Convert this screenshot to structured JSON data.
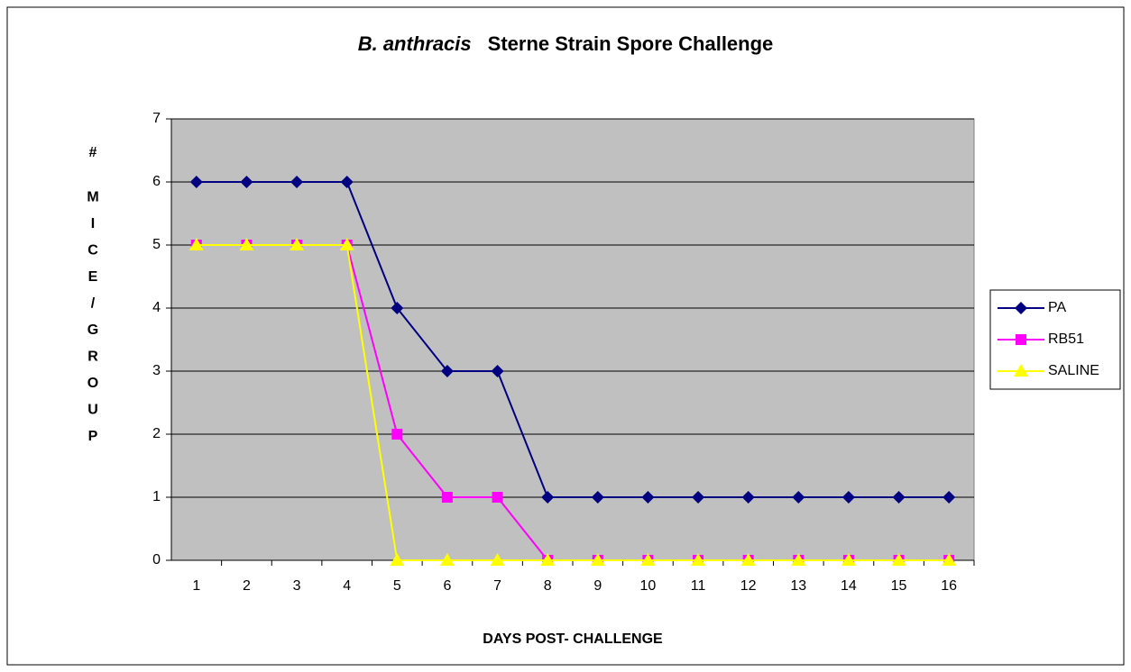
{
  "chart_data": {
    "type": "line",
    "title": [
      "B. anthracis",
      "Sterne Strain Spore Challenge"
    ],
    "xlabel": "DAYS POST- CHALLENGE",
    "ylabel": "# MICE/GROUP",
    "categories": [
      1,
      2,
      3,
      4,
      5,
      6,
      7,
      8,
      9,
      10,
      11,
      12,
      13,
      14,
      15,
      16
    ],
    "series": [
      {
        "name": "PA",
        "color": "#000080",
        "marker": "diamond",
        "values": [
          6,
          6,
          6,
          6,
          4,
          3,
          3,
          1,
          1,
          1,
          1,
          1,
          1,
          1,
          1,
          1
        ]
      },
      {
        "name": "RB51",
        "color": "#ff00ff",
        "marker": "square",
        "values": [
          5,
          5,
          5,
          5,
          2,
          1,
          1,
          0,
          0,
          0,
          0,
          0,
          0,
          0,
          0,
          0
        ]
      },
      {
        "name": "SALINE",
        "color": "#ffff00",
        "marker": "triangle",
        "values": [
          5,
          5,
          5,
          5,
          0,
          0,
          0,
          0,
          0,
          0,
          0,
          0,
          0,
          0,
          0,
          0
        ]
      }
    ],
    "ylim": [
      0,
      7
    ],
    "yticks": [
      0,
      1,
      2,
      3,
      4,
      5,
      6,
      7
    ],
    "grid": true,
    "legend": "right"
  }
}
